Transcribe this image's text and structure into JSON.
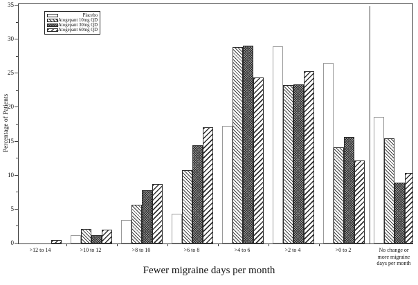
{
  "legend": {
    "items": [
      {
        "label": "Placebo",
        "pattern": "solid-white"
      },
      {
        "label": "Atogepant 10mg QD",
        "pattern": "diagonal-backslash-hatch"
      },
      {
        "label": "Atogepant 30mg QD",
        "pattern": "dense-gray-crosshatch"
      },
      {
        "label": "Atogepant 60mg QD",
        "pattern": "diagonal-forwardslash-hatch"
      }
    ]
  },
  "chart_data": {
    "type": "bar",
    "grouped": true,
    "title": "",
    "xlabel": "Fewer migraine days per month",
    "ylabel": "Percentage of Patients",
    "categories": [
      ">12 to 14",
      ">10 to 12",
      ">8 to 10",
      ">6 to 8",
      ">4 to 6",
      ">2 to 4",
      ">0 to 2",
      "No change or\nmore migraine\ndays per month"
    ],
    "series": [
      {
        "name": "Placebo",
        "values": [
          0,
          1.2,
          3.5,
          4.4,
          17.3,
          29.0,
          26.6,
          18.6
        ]
      },
      {
        "name": "Atogepant 10mg QD",
        "values": [
          0,
          2.1,
          5.7,
          10.8,
          28.9,
          23.3,
          14.1,
          15.5
        ]
      },
      {
        "name": "Atogepant 30mg QD",
        "values": [
          0,
          1.2,
          7.8,
          14.4,
          29.1,
          23.4,
          15.7,
          9.0
        ]
      },
      {
        "name": "Atogepant 60mg QD",
        "values": [
          0.5,
          2.0,
          8.7,
          17.1,
          24.4,
          25.3,
          12.2,
          10.4
        ]
      }
    ],
    "ylim": [
      0,
      35.2
    ],
    "y_major_ticks": [
      0,
      5,
      10,
      15,
      20,
      25,
      30,
      35
    ],
    "y_minor_ticks": [
      2.5,
      7.5,
      12.5,
      17.5,
      22.5,
      27.5,
      32.5
    ],
    "separator_before_category_index": 7,
    "legend_position": "top-left-inside",
    "grid": false,
    "bar_outline_colors": {
      "placebo": "#9a9a9a",
      "others": "#2b2b2b"
    },
    "axis_color": "#3a3a3a"
  }
}
